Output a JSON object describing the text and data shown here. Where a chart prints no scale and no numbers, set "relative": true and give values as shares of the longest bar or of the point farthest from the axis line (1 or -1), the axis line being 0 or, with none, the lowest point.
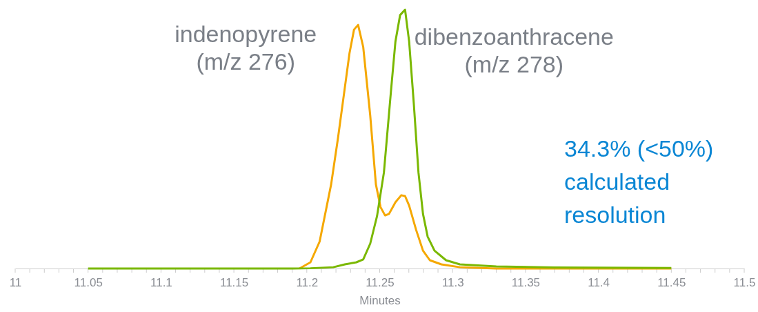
{
  "chart_data": {
    "type": "line",
    "relative": true,
    "xlabel": "Minutes",
    "xlim": [
      11,
      11.5
    ],
    "xticks": [
      11,
      {
        "value": 11.01,
        "label": null
      },
      {
        "value": 11.02,
        "label": null
      },
      {
        "value": 11.03,
        "label": null
      },
      {
        "value": 11.04,
        "label": null
      },
      11.05,
      {
        "value": 11.06,
        "label": null
      },
      {
        "value": 11.07,
        "label": null
      },
      {
        "value": 11.08,
        "label": null
      },
      {
        "value": 11.09,
        "label": null
      },
      11.1,
      {
        "value": 11.11,
        "label": null
      },
      {
        "value": 11.12,
        "label": null
      },
      {
        "value": 11.13,
        "label": null
      },
      {
        "value": 11.14,
        "label": null
      },
      11.15,
      {
        "value": 11.16,
        "label": null
      },
      {
        "value": 11.17,
        "label": null
      },
      {
        "value": 11.18,
        "label": null
      },
      {
        "value": 11.19,
        "label": null
      },
      11.2,
      {
        "value": 11.21,
        "label": null
      },
      {
        "value": 11.22,
        "label": null
      },
      {
        "value": 11.23,
        "label": null
      },
      {
        "value": 11.24,
        "label": null
      },
      11.25,
      {
        "value": 11.26,
        "label": null
      },
      {
        "value": 11.27,
        "label": null
      },
      {
        "value": 11.28,
        "label": null
      },
      {
        "value": 11.29,
        "label": null
      },
      11.3,
      {
        "value": 11.31,
        "label": null
      },
      {
        "value": 11.32,
        "label": null
      },
      {
        "value": 11.33,
        "label": null
      },
      {
        "value": 11.34,
        "label": null
      },
      11.35,
      {
        "value": 11.36,
        "label": null
      },
      {
        "value": 11.37,
        "label": null
      },
      {
        "value": 11.38,
        "label": null
      },
      {
        "value": 11.39,
        "label": null
      },
      11.4,
      {
        "value": 11.41,
        "label": null
      },
      {
        "value": 11.42,
        "label": null
      },
      {
        "value": 11.43,
        "label": null
      },
      {
        "value": 11.44,
        "label": null
      },
      11.45,
      {
        "value": 11.46,
        "label": null
      },
      {
        "value": 11.47,
        "label": null
      },
      {
        "value": 11.48,
        "label": null
      },
      {
        "value": 11.49,
        "label": null
      },
      11.5
    ],
    "series": [
      {
        "name": "indenopyrene\n(m/z 276)",
        "color": "#f5a800",
        "x": [
          11.195,
          11.2025,
          11.2088,
          11.2167,
          11.2214,
          11.2261,
          11.2293,
          11.2324,
          11.2352,
          11.2387,
          11.2435,
          11.2474,
          11.2506,
          11.2537,
          11.2564,
          11.2608,
          11.2648,
          11.2674,
          11.2702,
          11.275,
          11.2797,
          11.2844,
          11.2923,
          11.305,
          11.33,
          11.4,
          11.45
        ],
        "values": [
          0,
          0.024,
          0.104,
          0.325,
          0.504,
          0.699,
          0.832,
          0.923,
          0.941,
          0.856,
          0.592,
          0.325,
          0.237,
          0.205,
          0.211,
          0.256,
          0.283,
          0.28,
          0.243,
          0.149,
          0.069,
          0.032,
          0.016,
          0.005,
          0,
          0,
          0
        ]
      },
      {
        "name": "dibenzoanthracene\n(m/z 278)",
        "color": "#7ab800",
        "x": [
          11.05,
          11.1,
          11.15,
          11.19,
          11.2025,
          11.2182,
          11.2261,
          11.234,
          11.2387,
          11.2435,
          11.2482,
          11.2529,
          11.2577,
          11.2608,
          11.264,
          11.2674,
          11.2702,
          11.2734,
          11.2766,
          11.2797,
          11.2829,
          11.2876,
          11.2955,
          11.305,
          11.33,
          11.37,
          11.45
        ],
        "values": [
          0,
          0,
          0,
          0,
          0.001,
          0.005,
          0.016,
          0.024,
          0.035,
          0.096,
          0.203,
          0.371,
          0.683,
          0.877,
          0.979,
          1,
          0.877,
          0.637,
          0.371,
          0.211,
          0.123,
          0.069,
          0.032,
          0.016,
          0.008,
          0.004,
          0.002
        ]
      }
    ],
    "annotations": [
      "34.3% (<50%)\ncalculated\nresolution"
    ]
  }
}
